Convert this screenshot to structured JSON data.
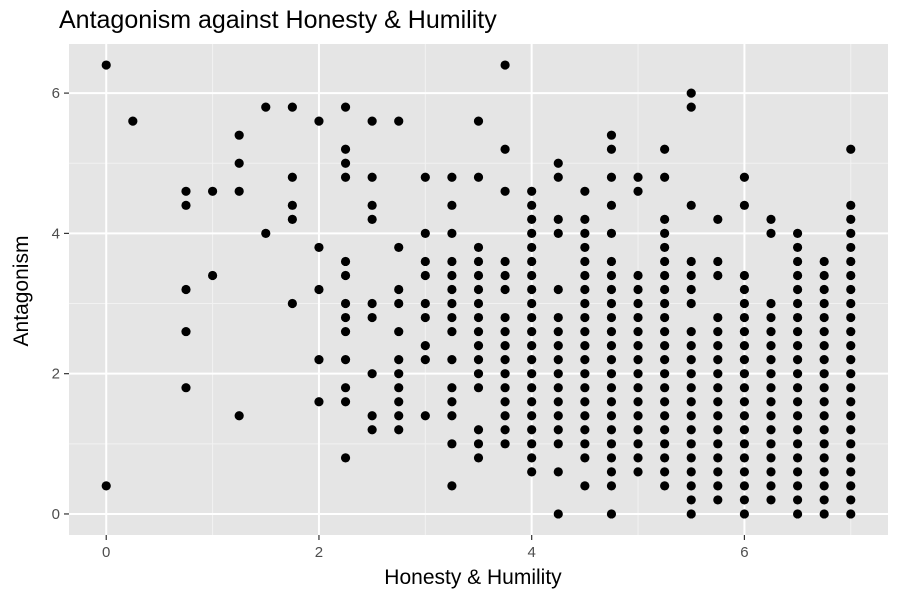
{
  "chart_data": {
    "type": "scatter",
    "title": "Antagonism against Honesty & Humility",
    "xlabel": "Honesty & Humility",
    "ylabel": "Antagonism",
    "xlim": [
      -0.35,
      7.35
    ],
    "ylim": [
      -0.3,
      6.7
    ],
    "x_ticks": [
      0,
      2,
      4,
      6
    ],
    "y_ticks": [
      0,
      2,
      4,
      6
    ],
    "x_tick_labels": [
      "0",
      "2",
      "4",
      "6"
    ],
    "y_tick_labels": [
      "0",
      "2",
      "4",
      "6"
    ],
    "grid": true,
    "panel_color": "#e5e5e5",
    "point_color": "#000000",
    "points": [
      [
        0,
        6.4
      ],
      [
        0,
        0.4
      ],
      [
        0.25,
        5.6
      ],
      [
        0.75,
        4.6
      ],
      [
        0.75,
        4.4
      ],
      [
        0.75,
        3.2
      ],
      [
        0.75,
        2.6
      ],
      [
        0.75,
        1.8
      ],
      [
        1,
        4.6
      ],
      [
        1,
        3.4
      ],
      [
        1.25,
        5.4
      ],
      [
        1.25,
        5.0
      ],
      [
        1.25,
        4.6
      ],
      [
        1.25,
        1.4
      ],
      [
        1.5,
        5.8
      ],
      [
        1.5,
        4.0
      ],
      [
        1.75,
        5.8
      ],
      [
        1.75,
        4.8
      ],
      [
        1.75,
        4.4
      ],
      [
        1.75,
        4.2
      ],
      [
        1.75,
        3.0
      ],
      [
        2,
        5.6
      ],
      [
        2,
        3.8
      ],
      [
        2,
        3.2
      ],
      [
        2,
        2.2
      ],
      [
        2,
        1.6
      ],
      [
        2.25,
        5.8
      ],
      [
        2.25,
        5.2
      ],
      [
        2.25,
        5.0
      ],
      [
        2.25,
        4.8
      ],
      [
        2.25,
        3.6
      ],
      [
        2.25,
        3.4
      ],
      [
        2.25,
        3.0
      ],
      [
        2.25,
        2.8
      ],
      [
        2.25,
        2.6
      ],
      [
        2.25,
        2.2
      ],
      [
        2.25,
        1.8
      ],
      [
        2.25,
        1.6
      ],
      [
        2.25,
        0.8
      ],
      [
        2.5,
        5.6
      ],
      [
        2.5,
        4.8
      ],
      [
        2.5,
        4.4
      ],
      [
        2.5,
        4.2
      ],
      [
        2.5,
        3.0
      ],
      [
        2.5,
        2.8
      ],
      [
        2.5,
        2.0
      ],
      [
        2.5,
        1.4
      ],
      [
        2.5,
        1.2
      ],
      [
        2.75,
        5.6
      ],
      [
        2.75,
        3.8
      ],
      [
        2.75,
        3.2
      ],
      [
        2.75,
        3.0
      ],
      [
        2.75,
        2.6
      ],
      [
        2.75,
        2.2
      ],
      [
        2.75,
        2.0
      ],
      [
        2.75,
        1.8
      ],
      [
        2.75,
        1.6
      ],
      [
        2.75,
        1.4
      ],
      [
        2.75,
        1.2
      ],
      [
        3,
        4.8
      ],
      [
        3,
        4.0
      ],
      [
        3,
        3.6
      ],
      [
        3,
        3.4
      ],
      [
        3,
        3.0
      ],
      [
        3,
        2.8
      ],
      [
        3,
        2.4
      ],
      [
        3,
        2.2
      ],
      [
        3,
        1.4
      ],
      [
        3.25,
        4.8
      ],
      [
        3.25,
        4.4
      ],
      [
        3.25,
        4.0
      ],
      [
        3.25,
        3.6
      ],
      [
        3.25,
        3.4
      ],
      [
        3.25,
        3.2
      ],
      [
        3.25,
        3.0
      ],
      [
        3.25,
        2.8
      ],
      [
        3.25,
        2.6
      ],
      [
        3.25,
        2.2
      ],
      [
        3.25,
        1.8
      ],
      [
        3.25,
        1.6
      ],
      [
        3.25,
        1.4
      ],
      [
        3.25,
        1.0
      ],
      [
        3.25,
        0.4
      ],
      [
        3.5,
        5.6
      ],
      [
        3.5,
        4.8
      ],
      [
        3.5,
        3.8
      ],
      [
        3.5,
        3.6
      ],
      [
        3.5,
        3.4
      ],
      [
        3.5,
        3.2
      ],
      [
        3.5,
        3.0
      ],
      [
        3.5,
        2.8
      ],
      [
        3.5,
        2.6
      ],
      [
        3.5,
        2.4
      ],
      [
        3.5,
        2.2
      ],
      [
        3.5,
        2.0
      ],
      [
        3.5,
        1.8
      ],
      [
        3.5,
        1.2
      ],
      [
        3.5,
        1.0
      ],
      [
        3.5,
        0.8
      ],
      [
        3.75,
        6.4
      ],
      [
        3.75,
        5.2
      ],
      [
        3.75,
        4.6
      ],
      [
        3.75,
        3.6
      ],
      [
        3.75,
        3.4
      ],
      [
        3.75,
        3.2
      ],
      [
        3.75,
        2.8
      ],
      [
        3.75,
        2.6
      ],
      [
        3.75,
        2.4
      ],
      [
        3.75,
        2.2
      ],
      [
        3.75,
        2.0
      ],
      [
        3.75,
        1.8
      ],
      [
        3.75,
        1.6
      ],
      [
        3.75,
        1.4
      ],
      [
        3.75,
        1.2
      ],
      [
        3.75,
        1.0
      ],
      [
        4,
        4.6
      ],
      [
        4,
        4.4
      ],
      [
        4,
        4.2
      ],
      [
        4,
        4.0
      ],
      [
        4,
        3.8
      ],
      [
        4,
        3.6
      ],
      [
        4,
        3.4
      ],
      [
        4,
        3.2
      ],
      [
        4,
        3.0
      ],
      [
        4,
        2.8
      ],
      [
        4,
        2.6
      ],
      [
        4,
        2.4
      ],
      [
        4,
        2.2
      ],
      [
        4,
        2.0
      ],
      [
        4,
        1.8
      ],
      [
        4,
        1.6
      ],
      [
        4,
        1.4
      ],
      [
        4,
        1.2
      ],
      [
        4,
        1.0
      ],
      [
        4,
        0.8
      ],
      [
        4,
        0.6
      ],
      [
        4.25,
        5.0
      ],
      [
        4.25,
        4.8
      ],
      [
        4.25,
        4.2
      ],
      [
        4.25,
        4.0
      ],
      [
        4.25,
        3.2
      ],
      [
        4.25,
        2.8
      ],
      [
        4.25,
        2.6
      ],
      [
        4.25,
        2.4
      ],
      [
        4.25,
        2.2
      ],
      [
        4.25,
        2.0
      ],
      [
        4.25,
        1.8
      ],
      [
        4.25,
        1.6
      ],
      [
        4.25,
        1.4
      ],
      [
        4.25,
        1.2
      ],
      [
        4.25,
        1.0
      ],
      [
        4.25,
        0.6
      ],
      [
        4.25,
        0.0
      ],
      [
        4.5,
        4.6
      ],
      [
        4.5,
        4.2
      ],
      [
        4.5,
        4.0
      ],
      [
        4.5,
        3.8
      ],
      [
        4.5,
        3.6
      ],
      [
        4.5,
        3.4
      ],
      [
        4.5,
        3.2
      ],
      [
        4.5,
        3.0
      ],
      [
        4.5,
        2.8
      ],
      [
        4.5,
        2.6
      ],
      [
        4.5,
        2.4
      ],
      [
        4.5,
        2.2
      ],
      [
        4.5,
        2.0
      ],
      [
        4.5,
        1.8
      ],
      [
        4.5,
        1.6
      ],
      [
        4.5,
        1.4
      ],
      [
        4.5,
        1.2
      ],
      [
        4.5,
        1.0
      ],
      [
        4.5,
        0.8
      ],
      [
        4.5,
        0.4
      ],
      [
        4.75,
        5.4
      ],
      [
        4.75,
        5.2
      ],
      [
        4.75,
        4.8
      ],
      [
        4.75,
        4.4
      ],
      [
        4.75,
        4.0
      ],
      [
        4.75,
        3.6
      ],
      [
        4.75,
        3.4
      ],
      [
        4.75,
        3.2
      ],
      [
        4.75,
        3.0
      ],
      [
        4.75,
        2.8
      ],
      [
        4.75,
        2.6
      ],
      [
        4.75,
        2.4
      ],
      [
        4.75,
        2.2
      ],
      [
        4.75,
        2.0
      ],
      [
        4.75,
        1.8
      ],
      [
        4.75,
        1.6
      ],
      [
        4.75,
        1.4
      ],
      [
        4.75,
        1.2
      ],
      [
        4.75,
        1.0
      ],
      [
        4.75,
        0.8
      ],
      [
        4.75,
        0.6
      ],
      [
        4.75,
        0.4
      ],
      [
        4.75,
        0.0
      ],
      [
        5,
        4.8
      ],
      [
        5,
        4.6
      ],
      [
        5,
        3.4
      ],
      [
        5,
        3.2
      ],
      [
        5,
        3.0
      ],
      [
        5,
        2.8
      ],
      [
        5,
        2.6
      ],
      [
        5,
        2.4
      ],
      [
        5,
        2.2
      ],
      [
        5,
        2.0
      ],
      [
        5,
        1.8
      ],
      [
        5,
        1.6
      ],
      [
        5,
        1.4
      ],
      [
        5,
        1.2
      ],
      [
        5,
        1.0
      ],
      [
        5,
        0.8
      ],
      [
        5,
        0.6
      ],
      [
        5.25,
        5.2
      ],
      [
        5.25,
        4.8
      ],
      [
        5.25,
        4.2
      ],
      [
        5.25,
        4.0
      ],
      [
        5.25,
        3.8
      ],
      [
        5.25,
        3.6
      ],
      [
        5.25,
        3.4
      ],
      [
        5.25,
        3.2
      ],
      [
        5.25,
        3.0
      ],
      [
        5.25,
        2.8
      ],
      [
        5.25,
        2.6
      ],
      [
        5.25,
        2.4
      ],
      [
        5.25,
        2.2
      ],
      [
        5.25,
        2.0
      ],
      [
        5.25,
        1.8
      ],
      [
        5.25,
        1.6
      ],
      [
        5.25,
        1.4
      ],
      [
        5.25,
        1.2
      ],
      [
        5.25,
        1.0
      ],
      [
        5.25,
        0.8
      ],
      [
        5.25,
        0.6
      ],
      [
        5.25,
        0.4
      ],
      [
        5.5,
        6.0
      ],
      [
        5.5,
        5.8
      ],
      [
        5.5,
        4.4
      ],
      [
        5.5,
        3.6
      ],
      [
        5.5,
        3.4
      ],
      [
        5.5,
        3.2
      ],
      [
        5.5,
        3.0
      ],
      [
        5.5,
        2.6
      ],
      [
        5.5,
        2.4
      ],
      [
        5.5,
        2.2
      ],
      [
        5.5,
        2.0
      ],
      [
        5.5,
        1.8
      ],
      [
        5.5,
        1.6
      ],
      [
        5.5,
        1.4
      ],
      [
        5.5,
        1.2
      ],
      [
        5.5,
        1.0
      ],
      [
        5.5,
        0.8
      ],
      [
        5.5,
        0.6
      ],
      [
        5.5,
        0.4
      ],
      [
        5.5,
        0.2
      ],
      [
        5.5,
        0.0
      ],
      [
        5.75,
        4.2
      ],
      [
        5.75,
        3.6
      ],
      [
        5.75,
        3.4
      ],
      [
        5.75,
        2.8
      ],
      [
        5.75,
        2.6
      ],
      [
        5.75,
        2.4
      ],
      [
        5.75,
        2.2
      ],
      [
        5.75,
        2.0
      ],
      [
        5.75,
        1.8
      ],
      [
        5.75,
        1.6
      ],
      [
        5.75,
        1.4
      ],
      [
        5.75,
        1.2
      ],
      [
        5.75,
        1.0
      ],
      [
        5.75,
        0.8
      ],
      [
        5.75,
        0.6
      ],
      [
        5.75,
        0.4
      ],
      [
        5.75,
        0.2
      ],
      [
        6,
        4.8
      ],
      [
        6,
        4.4
      ],
      [
        6,
        3.4
      ],
      [
        6,
        3.2
      ],
      [
        6,
        3.0
      ],
      [
        6,
        2.8
      ],
      [
        6,
        2.6
      ],
      [
        6,
        2.4
      ],
      [
        6,
        2.2
      ],
      [
        6,
        2.0
      ],
      [
        6,
        1.8
      ],
      [
        6,
        1.6
      ],
      [
        6,
        1.4
      ],
      [
        6,
        1.2
      ],
      [
        6,
        1.0
      ],
      [
        6,
        0.8
      ],
      [
        6,
        0.6
      ],
      [
        6,
        0.4
      ],
      [
        6,
        0.2
      ],
      [
        6,
        0.0
      ],
      [
        6.25,
        4.2
      ],
      [
        6.25,
        4.0
      ],
      [
        6.25,
        3.0
      ],
      [
        6.25,
        2.8
      ],
      [
        6.25,
        2.6
      ],
      [
        6.25,
        2.4
      ],
      [
        6.25,
        2.2
      ],
      [
        6.25,
        2.0
      ],
      [
        6.25,
        1.8
      ],
      [
        6.25,
        1.6
      ],
      [
        6.25,
        1.4
      ],
      [
        6.25,
        1.2
      ],
      [
        6.25,
        1.0
      ],
      [
        6.25,
        0.8
      ],
      [
        6.25,
        0.6
      ],
      [
        6.25,
        0.4
      ],
      [
        6.25,
        0.2
      ],
      [
        6.5,
        4.0
      ],
      [
        6.5,
        3.8
      ],
      [
        6.5,
        3.6
      ],
      [
        6.5,
        3.4
      ],
      [
        6.5,
        3.2
      ],
      [
        6.5,
        3.0
      ],
      [
        6.5,
        2.8
      ],
      [
        6.5,
        2.6
      ],
      [
        6.5,
        2.4
      ],
      [
        6.5,
        2.2
      ],
      [
        6.5,
        2.0
      ],
      [
        6.5,
        1.8
      ],
      [
        6.5,
        1.6
      ],
      [
        6.5,
        1.4
      ],
      [
        6.5,
        1.2
      ],
      [
        6.5,
        1.0
      ],
      [
        6.5,
        0.8
      ],
      [
        6.5,
        0.6
      ],
      [
        6.5,
        0.4
      ],
      [
        6.5,
        0.2
      ],
      [
        6.5,
        0.0
      ],
      [
        6.75,
        3.6
      ],
      [
        6.75,
        3.4
      ],
      [
        6.75,
        3.2
      ],
      [
        6.75,
        3.0
      ],
      [
        6.75,
        2.8
      ],
      [
        6.75,
        2.6
      ],
      [
        6.75,
        2.4
      ],
      [
        6.75,
        2.2
      ],
      [
        6.75,
        2.0
      ],
      [
        6.75,
        1.8
      ],
      [
        6.75,
        1.6
      ],
      [
        6.75,
        1.4
      ],
      [
        6.75,
        1.2
      ],
      [
        6.75,
        1.0
      ],
      [
        6.75,
        0.8
      ],
      [
        6.75,
        0.6
      ],
      [
        6.75,
        0.4
      ],
      [
        6.75,
        0.2
      ],
      [
        6.75,
        0.0
      ],
      [
        7,
        5.2
      ],
      [
        7,
        4.4
      ],
      [
        7,
        4.2
      ],
      [
        7,
        4.0
      ],
      [
        7,
        3.8
      ],
      [
        7,
        3.6
      ],
      [
        7,
        3.4
      ],
      [
        7,
        3.2
      ],
      [
        7,
        3.0
      ],
      [
        7,
        2.8
      ],
      [
        7,
        2.6
      ],
      [
        7,
        2.4
      ],
      [
        7,
        2.2
      ],
      [
        7,
        2.0
      ],
      [
        7,
        1.8
      ],
      [
        7,
        1.6
      ],
      [
        7,
        1.4
      ],
      [
        7,
        1.2
      ],
      [
        7,
        1.0
      ],
      [
        7,
        0.8
      ],
      [
        7,
        0.6
      ],
      [
        7,
        0.4
      ],
      [
        7,
        0.2
      ],
      [
        7,
        0.0
      ]
    ]
  }
}
